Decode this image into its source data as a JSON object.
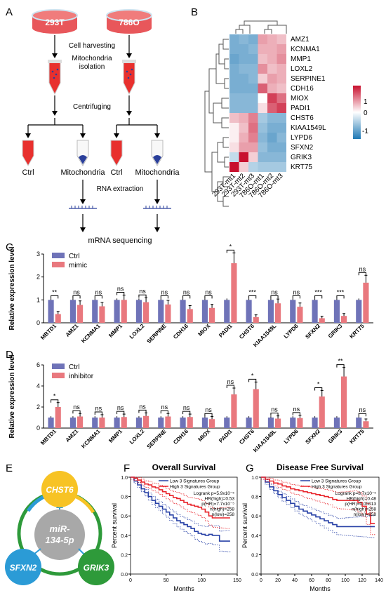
{
  "panels": {
    "a": "A",
    "b": "B",
    "c": "C",
    "d": "D",
    "e": "E",
    "f": "F",
    "g": "G"
  },
  "workflow": {
    "dish_left": "293T",
    "dish_right": "786O",
    "steps": [
      "Cell harvesting",
      "Mitochondria",
      "isolation",
      "Centrifuging",
      "RNA  extraction",
      "mRNA sequencing"
    ],
    "tube_labels": [
      "Ctrl",
      "Mitochondria",
      "Ctrl",
      "Mitochondria"
    ],
    "colors": {
      "dish": "#e8575b",
      "tube_red": "#e8302e",
      "tube_blue": "#2a3f9a"
    }
  },
  "heatmap": {
    "rows": [
      "AMZ1",
      "KCNMA1",
      "MMP1",
      "LOXL2",
      "SERPINE1",
      "CDH16",
      "MIOX",
      "PADI1",
      "CHST6",
      "KIAA1549L",
      "LYPD6",
      "SFXN2",
      "GRIK3",
      "KRT75"
    ],
    "cols": [
      "293T-mt1",
      "293T-mt2",
      "293T-mt3",
      "786O-mt1",
      "786O-mt2",
      "786O-mt3"
    ],
    "values": [
      [
        -0.9,
        -0.8,
        -0.9,
        0.6,
        0.5,
        0.4
      ],
      [
        -0.9,
        -0.9,
        -0.8,
        0.5,
        0.5,
        0.6
      ],
      [
        -1.0,
        -0.9,
        -0.9,
        0.4,
        0.5,
        0.7
      ],
      [
        -0.9,
        -0.8,
        -0.8,
        0.7,
        0.4,
        0.5
      ],
      [
        -0.9,
        -0.9,
        -0.8,
        0.3,
        0.6,
        0.5
      ],
      [
        -0.9,
        -0.9,
        -0.9,
        1.0,
        0.5,
        0.4
      ],
      [
        -0.8,
        -0.8,
        -0.8,
        0.0,
        1.2,
        0.9
      ],
      [
        -0.8,
        -0.8,
        -0.8,
        0.2,
        1.0,
        1.2
      ],
      [
        0.4,
        0.5,
        0.8,
        -0.6,
        -0.8,
        -0.8
      ],
      [
        0.1,
        0.4,
        0.9,
        -0.7,
        -0.9,
        -0.9
      ],
      [
        0.1,
        0.5,
        0.8,
        -0.8,
        -1.0,
        -0.8
      ],
      [
        0.2,
        0.6,
        0.6,
        -0.7,
        -0.9,
        -0.9
      ],
      [
        -0.4,
        1.5,
        0.3,
        -0.8,
        -0.8,
        -0.8
      ],
      [
        1.6,
        0.3,
        -0.5,
        -0.6,
        -0.6,
        -0.6
      ]
    ],
    "legend_ticks": [
      "1",
      "0",
      "-1"
    ],
    "colors": {
      "high": "#c8102e",
      "mid": "#ffffff",
      "low": "#1f78b4"
    }
  },
  "chart_data": [
    {
      "type": "bar",
      "panel": "C",
      "ylabel": "Relative expression level",
      "ylim": [
        0,
        3
      ],
      "yticks": [
        "0",
        "1",
        "2",
        "3"
      ],
      "categories": [
        "MBTD1",
        "AMZ1",
        "KCNMA1",
        "MMP1",
        "LOXL2",
        "SERPINE",
        "CDH16",
        "MIOX",
        "PADI1",
        "CHST6",
        "KIAA1549L",
        "LYPD6",
        "SFXN2",
        "GRIK3",
        "KRT75"
      ],
      "series": [
        {
          "name": "Ctrl",
          "color": "#6f73b8",
          "values": [
            1,
            1,
            1,
            1,
            1,
            1,
            1,
            1,
            1,
            1,
            1,
            1,
            1,
            1,
            1
          ]
        },
        {
          "name": "mimic",
          "color": "#e9787e",
          "values": [
            0.38,
            0.78,
            0.72,
            1.0,
            0.9,
            0.8,
            0.6,
            0.65,
            2.6,
            0.25,
            0.85,
            0.7,
            0.2,
            0.3,
            1.75
          ]
        }
      ],
      "significance": [
        "**",
        "ns",
        "ns",
        "ns",
        "ns",
        "ns",
        "ns",
        "ns",
        "*",
        "***",
        "ns",
        "ns",
        "***",
        "***",
        "ns"
      ]
    },
    {
      "type": "bar",
      "panel": "D",
      "ylabel": "Relative expression level",
      "ylim": [
        0,
        6
      ],
      "yticks": [
        "0",
        "2",
        "4",
        "6"
      ],
      "categories": [
        "MBTD1",
        "AMZ1",
        "KCNMA1",
        "MMP1",
        "LOXL2",
        "SERPINE",
        "CDH16",
        "MIOX",
        "PADI1",
        "CHST6",
        "KIAA1549L",
        "LYPD6",
        "SFXN2",
        "GRIK3",
        "KRT75"
      ],
      "series": [
        {
          "name": "Ctrl",
          "color": "#6f73b8",
          "values": [
            1,
            1,
            1,
            1,
            1,
            1,
            1,
            1,
            1,
            1,
            1,
            1,
            1,
            1,
            1
          ]
        },
        {
          "name": "inhibitor",
          "color": "#e9787e",
          "values": [
            2.0,
            1.1,
            1.0,
            1.05,
            1.15,
            1.1,
            1.05,
            0.85,
            3.2,
            3.7,
            0.9,
            0.95,
            3.0,
            4.9,
            0.65
          ]
        }
      ],
      "significance": [
        "*",
        "ns",
        "ns",
        "ns",
        "ns",
        "ns",
        "ns",
        "ns",
        "ns",
        "*",
        "ns",
        "ns",
        "*",
        "**",
        "ns"
      ]
    },
    {
      "type": "line",
      "panel": "F",
      "title": "Overall Survival",
      "xlabel": "Months",
      "ylabel": "Percent survival",
      "xlim": [
        0,
        150
      ],
      "ylim": [
        0,
        1.0
      ],
      "xticks": [
        "0",
        "50",
        "100",
        "150"
      ],
      "yticks": [
        "0.0",
        "0.2",
        "0.4",
        "0.6",
        "0.8",
        "1.0"
      ],
      "legend": [
        "Low 3 Signatures Group",
        "High 3 Signatures Group"
      ],
      "stats": [
        "Logrank p=5.9x10⁻⁵",
        "HR(high)=0.53",
        "p(HR)=7.7x10⁻⁵",
        "n(high)=258",
        "n(low)=258"
      ],
      "series": [
        {
          "name": "Low 3 Signatures Group",
          "color": "#2740a6",
          "x": [
            0,
            5,
            10,
            15,
            20,
            25,
            30,
            35,
            40,
            45,
            50,
            55,
            60,
            65,
            70,
            75,
            80,
            85,
            90,
            95,
            100,
            105,
            110,
            115,
            120,
            125,
            130,
            135,
            140
          ],
          "y": [
            1.0,
            0.96,
            0.92,
            0.88,
            0.84,
            0.8,
            0.76,
            0.73,
            0.7,
            0.67,
            0.64,
            0.61,
            0.58,
            0.55,
            0.53,
            0.51,
            0.49,
            0.47,
            0.44,
            0.42,
            0.41,
            0.4,
            0.41,
            0.4,
            0.4,
            0.34,
            0.34,
            0.34,
            0.34
          ]
        },
        {
          "name": "High 3 Signatures Group",
          "color": "#e8232a",
          "x": [
            0,
            5,
            10,
            15,
            20,
            25,
            30,
            35,
            40,
            45,
            50,
            55,
            60,
            65,
            70,
            75,
            80,
            85,
            90,
            95,
            100,
            105,
            110,
            115,
            120,
            125,
            130,
            135,
            140
          ],
          "y": [
            1.0,
            0.99,
            0.97,
            0.95,
            0.93,
            0.92,
            0.9,
            0.89,
            0.87,
            0.85,
            0.83,
            0.81,
            0.79,
            0.78,
            0.76,
            0.74,
            0.72,
            0.71,
            0.7,
            0.69,
            0.67,
            0.64,
            0.6,
            0.58,
            0.58,
            0.58,
            0.58,
            0.58,
            0.58
          ]
        }
      ]
    },
    {
      "type": "line",
      "panel": "G",
      "title": "Disease Free Survival",
      "xlabel": "Months",
      "ylabel": "Percent survival",
      "xlim": [
        0,
        140
      ],
      "ylim": [
        0,
        1.0
      ],
      "xticks": [
        "0",
        "20",
        "40",
        "60",
        "80",
        "100",
        "120",
        "140"
      ],
      "yticks": [
        "0.0",
        "0.2",
        "0.4",
        "0.6",
        "0.8",
        "1.0"
      ],
      "legend": [
        "Low 3 Signatures Group",
        "High 3 Signatures Group"
      ],
      "stats": [
        "Logrank p=8.7x10⁻⁵",
        "HR(high)=0.48",
        "p(HR)=0.00013",
        "n(high)=258",
        "n(low)=258"
      ],
      "series": [
        {
          "name": "Low 3 Signatures Group",
          "color": "#2740a6",
          "x": [
            0,
            5,
            10,
            15,
            20,
            25,
            30,
            35,
            40,
            45,
            50,
            55,
            60,
            65,
            70,
            75,
            80,
            85,
            90,
            95,
            100,
            105,
            110,
            115,
            120,
            125,
            130,
            135
          ],
          "y": [
            1.0,
            0.95,
            0.9,
            0.86,
            0.82,
            0.79,
            0.76,
            0.73,
            0.7,
            0.67,
            0.65,
            0.63,
            0.61,
            0.59,
            0.57,
            0.55,
            0.53,
            0.51,
            0.49,
            0.49,
            0.49,
            0.49,
            0.49,
            0.49,
            0.49,
            0.49,
            0.49,
            0.49
          ]
        },
        {
          "name": "High 3 Signatures Group",
          "color": "#e8232a",
          "x": [
            0,
            5,
            10,
            15,
            20,
            25,
            30,
            35,
            40,
            45,
            50,
            55,
            60,
            65,
            70,
            75,
            80,
            85,
            90,
            95,
            100,
            105,
            110,
            115,
            120,
            125,
            130,
            135
          ],
          "y": [
            1.0,
            0.98,
            0.96,
            0.94,
            0.93,
            0.91,
            0.9,
            0.88,
            0.87,
            0.86,
            0.85,
            0.84,
            0.83,
            0.82,
            0.81,
            0.8,
            0.79,
            0.77,
            0.76,
            0.76,
            0.76,
            0.76,
            0.76,
            0.74,
            0.7,
            0.62,
            0.52,
            0.52
          ]
        }
      ]
    }
  ],
  "network": {
    "center": [
      "miR-",
      "134-5p"
    ],
    "nodes": [
      "CHST6",
      "SFXN2",
      "GRIK3"
    ],
    "colors": {
      "CHST6": "#f7c325",
      "SFXN2": "#2b9bd6",
      "GRIK3": "#2e9a3a",
      "center": "#a8a8a8"
    }
  }
}
